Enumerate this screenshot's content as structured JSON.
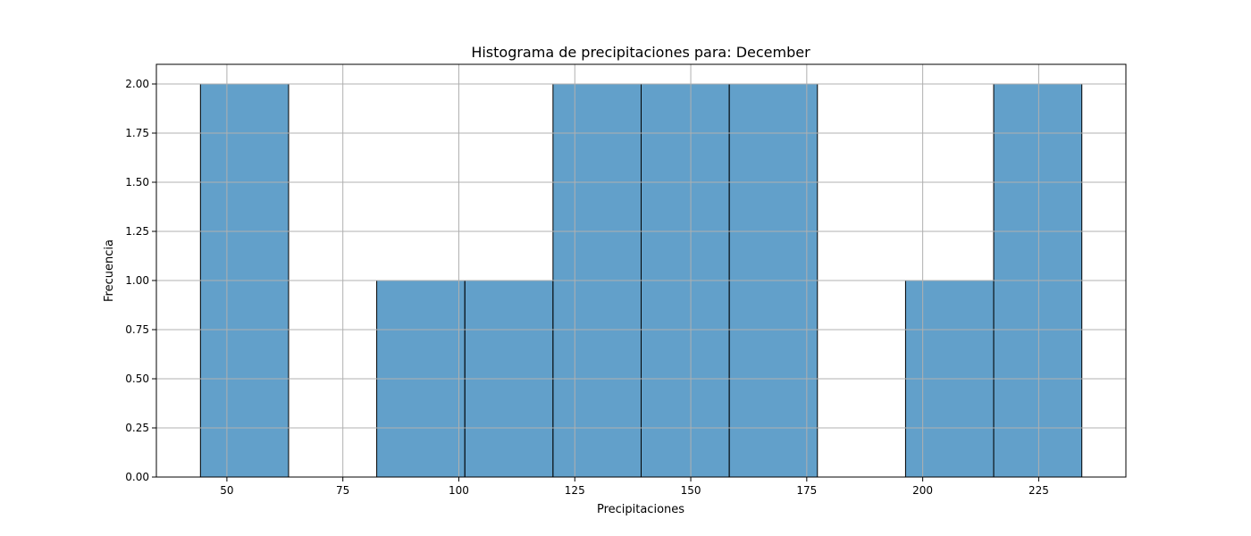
{
  "chart_data": {
    "type": "bar",
    "title": "Histograma de precipitaciones para: December",
    "xlabel": "Precipitaciones",
    "ylabel": "Frecuencia",
    "bins": [
      {
        "start": 44.3,
        "end": 63.3,
        "count": 2
      },
      {
        "start": 63.3,
        "end": 82.3,
        "count": 0
      },
      {
        "start": 82.3,
        "end": 101.3,
        "count": 1
      },
      {
        "start": 101.3,
        "end": 120.3,
        "count": 1
      },
      {
        "start": 120.3,
        "end": 139.3,
        "count": 2
      },
      {
        "start": 139.3,
        "end": 158.3,
        "count": 2
      },
      {
        "start": 158.3,
        "end": 177.3,
        "count": 2
      },
      {
        "start": 177.3,
        "end": 196.3,
        "count": 0
      },
      {
        "start": 196.3,
        "end": 215.3,
        "count": 1
      },
      {
        "start": 215.3,
        "end": 234.3,
        "count": 2
      }
    ],
    "xlim": [
      34.8,
      243.8
    ],
    "ylim": [
      0,
      2.1
    ],
    "xticks": [
      50,
      75,
      100,
      125,
      150,
      175,
      200,
      225
    ],
    "xtick_labels": [
      "50",
      "75",
      "100",
      "125",
      "150",
      "175",
      "200",
      "225"
    ],
    "yticks": [
      0,
      0.25,
      0.5,
      0.75,
      1.0,
      1.25,
      1.5,
      1.75,
      2.0
    ],
    "ytick_labels": [
      "0.00",
      "0.25",
      "0.50",
      "0.75",
      "1.00",
      "1.25",
      "1.50",
      "1.75",
      "2.00"
    ],
    "grid": true,
    "bar_color": "#1f77b4",
    "bar_alpha": 0.7,
    "edge_color": "#000000"
  }
}
